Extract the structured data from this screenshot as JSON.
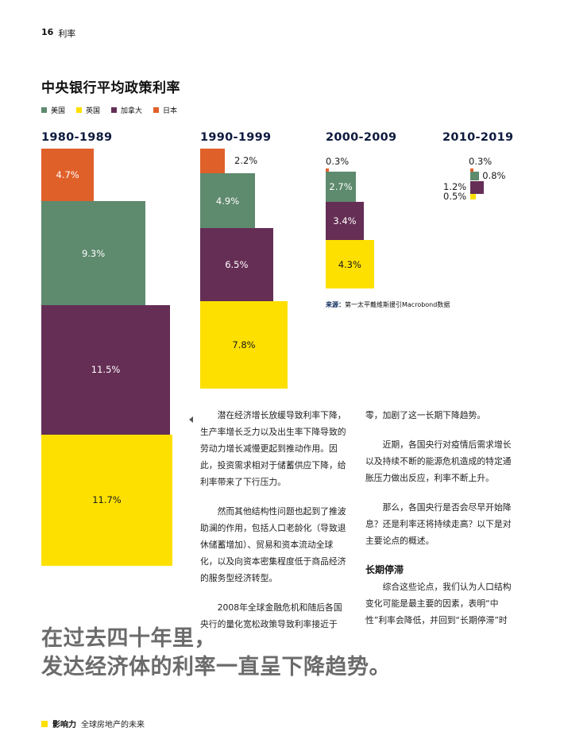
{
  "header": {
    "page_number": "16",
    "section": "利率"
  },
  "chart_title": "中央银行平均政策利率",
  "legend": [
    {
      "label": "美国",
      "color": "#5e8a6e"
    },
    {
      "label": "英国",
      "color": "#fde000"
    },
    {
      "label": "加拿大",
      "color": "#652e55"
    },
    {
      "label": "日本",
      "color": "#e0602a"
    }
  ],
  "chart_data": {
    "type": "bar",
    "subtype": "stacked-squares",
    "categories": [
      "1980-1989",
      "1990-1999",
      "2000-2009",
      "2010-2019"
    ],
    "series": [
      {
        "name": "日本",
        "values": [
          4.7,
          2.2,
          0.3,
          0.3
        ],
        "labels": [
          "4.7%",
          "2.2%",
          "0.3%",
          "0.3%"
        ]
      },
      {
        "name": "美国",
        "values": [
          9.3,
          4.9,
          2.7,
          0.8
        ],
        "labels": [
          "9.3%",
          "4.9%",
          "2.7%",
          "0.8%"
        ]
      },
      {
        "name": "加拿大",
        "values": [
          11.5,
          6.5,
          3.4,
          1.2
        ],
        "labels": [
          "11.5%",
          "6.5%",
          "3.4%",
          "1.2%"
        ]
      },
      {
        "name": "英国",
        "values": [
          11.7,
          7.8,
          4.3,
          0.5
        ],
        "labels": [
          "11.7%",
          "7.8%",
          "4.3%",
          "0.5%"
        ]
      }
    ]
  },
  "source": {
    "label": "来源：",
    "text": "第一太平戴维斯援引Macrobond数据"
  },
  "body": {
    "col1": [
      "潜在经济增长放缓导致利率下降，生产率增长乏力以及出生率下降导致的劳动力增长减慢更起到推动作用。因此，投资需求相对于储蓄供应下降，给利率带来了下行压力。",
      "然而其他结构性问题也起到了推波助澜的作用，包括人口老龄化（导致退休储蓄增加）、贸易和资本流动全球化，以及向资本密集程度低于商品经济的服务型经济转型。",
      "2008年全球金融危机和随后各国央行的量化宽松政策导致利率接近于"
    ],
    "col2_intro": "零，加剧了这一长期下降趋势。",
    "col2": [
      "近期，各国央行对疫情后需求增长以及持续不断的能源危机造成的特定通胀压力做出反应，利率不断上升。",
      "那么，各国央行是否会尽早开始降息？还是利率还将持续走高？以下是对主要论点的概述。"
    ],
    "col2_heading": "长期停滞",
    "col2_last": "综合这些论点，我们认为人口结构变化可能是最主要的因素，表明“中性”利率会降低，并回到“长期停滞”时"
  },
  "pull_quote": {
    "line1": "在过去四十年里，",
    "line2": "发达经济体的利率一直呈下降趋势。"
  },
  "footer": {
    "brand": "影响力",
    "text": "全球房地产的未来"
  }
}
